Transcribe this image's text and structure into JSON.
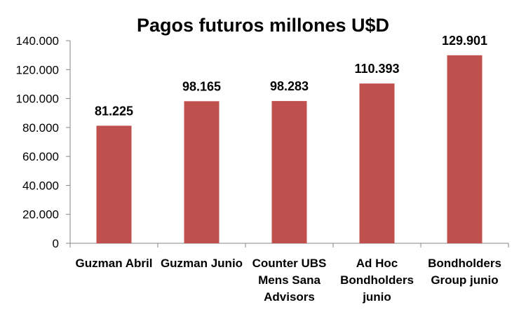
{
  "chart_data": {
    "type": "bar",
    "title": "Pagos futuros millones U$D",
    "xlabel": "",
    "ylabel": "",
    "categories": [
      [
        "Guzman Abril"
      ],
      [
        "Guzman Junio"
      ],
      [
        "Counter UBS",
        "Mens Sana",
        "Advisors"
      ],
      [
        "Ad Hoc",
        "Bondholders",
        "junio"
      ],
      [
        "Bondholders",
        "Group junio"
      ]
    ],
    "values": [
      81.225,
      98.165,
      98.283,
      110.393,
      129.901
    ],
    "value_labels": [
      "81.225",
      "98.165",
      "98.283",
      "110.393",
      "129.901"
    ],
    "ylim": [
      0,
      140
    ],
    "yticks": [
      0,
      20,
      40,
      60,
      80,
      100,
      120,
      140
    ],
    "ytick_labels": [
      "0",
      "20.000",
      "40.000",
      "60.000",
      "80.000",
      "100.000",
      "120.000",
      "140.000"
    ],
    "grid": false,
    "legend": "none",
    "colors": {
      "bar": "#C0504D",
      "axis": "#868686",
      "text": "#000000"
    }
  }
}
